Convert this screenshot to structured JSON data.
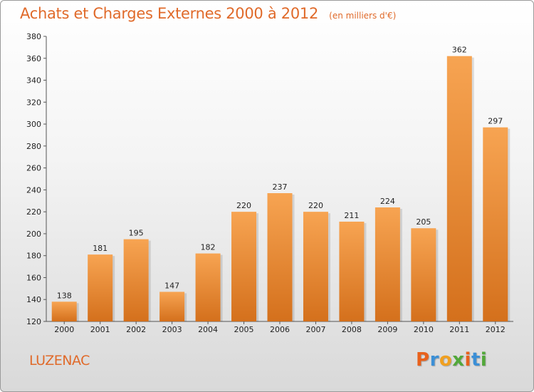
{
  "header": {
    "title": "Achats et Charges Externes 2000 à 2012",
    "subtitle": "(en milliers d'€)"
  },
  "footer": {
    "place": "LUZENAC",
    "logo_text": "Proxiti"
  },
  "colors": {
    "bar_top": "#f7a452",
    "bar_bottom": "#d4701c",
    "title": "#e06a2a",
    "logo_letters": [
      "#e8611c",
      "#3b8fd6",
      "#f0a020",
      "#52a83a",
      "#e8611c",
      "#3b8fd6",
      "#52a83a"
    ]
  },
  "chart_data": {
    "type": "bar",
    "title": "Achats et Charges Externes 2000 à 2012",
    "subtitle": "(en milliers d'€)",
    "categories": [
      "2000",
      "2001",
      "2002",
      "2003",
      "2004",
      "2005",
      "2006",
      "2007",
      "2008",
      "2009",
      "2010",
      "2011",
      "2012"
    ],
    "values": [
      138,
      181,
      195,
      147,
      182,
      220,
      237,
      220,
      211,
      224,
      205,
      362,
      297
    ],
    "ylim": [
      120,
      380
    ],
    "yticks": [
      120,
      140,
      160,
      180,
      200,
      220,
      240,
      260,
      280,
      300,
      320,
      340,
      360,
      380
    ],
    "grid": false,
    "legend": "none"
  }
}
